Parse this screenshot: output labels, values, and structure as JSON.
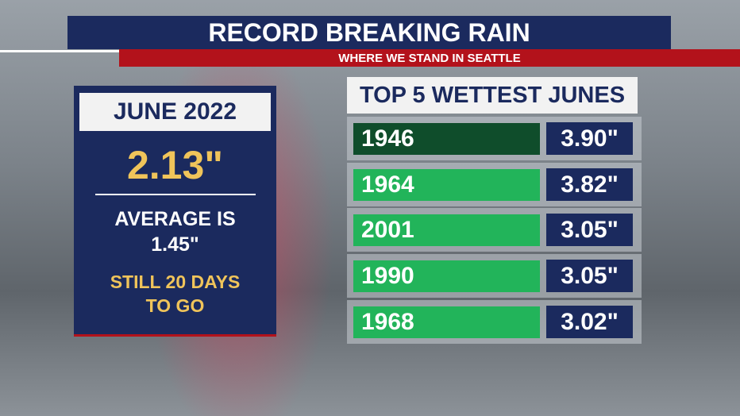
{
  "header": {
    "title": "RECORD BREAKING RAIN",
    "subtitle": "WHERE WE STAND IN SEATTLE"
  },
  "current": {
    "label": "JUNE 2022",
    "amount": "2.13\"",
    "average_label": "AVERAGE IS",
    "average": "1.45\"",
    "note_line1": "STILL 20 DAYS",
    "note_line2": "TO GO"
  },
  "table": {
    "title": "TOP 5 WETTEST JUNES",
    "rows": [
      [
        "1946",
        "3.90\""
      ],
      [
        "1964",
        "3.82\""
      ],
      [
        "2001",
        "3.05\""
      ],
      [
        "1990",
        "3.05\""
      ],
      [
        "1968",
        "3.02\""
      ]
    ]
  }
}
